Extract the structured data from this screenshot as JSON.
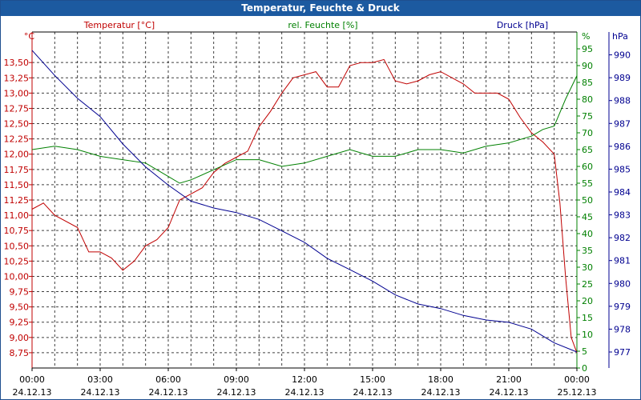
{
  "window": {
    "title": "Temperatur, Feuchte & Druck"
  },
  "chart_data": {
    "type": "line",
    "title": "Temperatur, Feuchte & Druck",
    "grid": true,
    "x_ticks": [
      {
        "time": "00:00",
        "date": "24.12.13"
      },
      {
        "time": "03:00",
        "date": "24.12.13"
      },
      {
        "time": "06:00",
        "date": "24.12.13"
      },
      {
        "time": "09:00",
        "date": "24.12.13"
      },
      {
        "time": "12:00",
        "date": "24.12.13"
      },
      {
        "time": "15:00",
        "date": "24.12.13"
      },
      {
        "time": "18:00",
        "date": "24.12.13"
      },
      {
        "time": "21:00",
        "date": "24.12.13"
      },
      {
        "time": "00:00",
        "date": "25.12.13"
      }
    ],
    "xlim_hours": [
      0,
      24
    ],
    "axes": {
      "temperature": {
        "label": "Temperatur [°C]",
        "unit": "°C",
        "ylim": [
          8.5,
          14.0
        ],
        "ticks": [
          "8,75",
          "9,00",
          "9,25",
          "9,50",
          "9,75",
          "10,00",
          "10,25",
          "10,50",
          "10,75",
          "11,00",
          "11,25",
          "11,50",
          "11,75",
          "12,00",
          "12,25",
          "12,50",
          "12,75",
          "13,00",
          "13,25",
          "13,50"
        ],
        "color": "#c00000"
      },
      "humidity": {
        "label": "rel. Feuchte [%]",
        "unit": "%",
        "ylim": [
          0,
          100
        ],
        "ticks": [
          "0",
          "5",
          "10",
          "15",
          "20",
          "25",
          "30",
          "35",
          "40",
          "45",
          "50",
          "55",
          "60",
          "65",
          "70",
          "75",
          "80",
          "85",
          "90",
          "95"
        ],
        "color": "#008000"
      },
      "pressure": {
        "label": "Druck [hPa]",
        "unit": "hPa",
        "ylim": [
          976.3,
          991.0
        ],
        "ticks": [
          "977",
          "978",
          "979",
          "980",
          "981",
          "982",
          "983",
          "984",
          "985",
          "986",
          "987",
          "988",
          "989",
          "990"
        ],
        "color": "#000090"
      }
    },
    "series": [
      {
        "name": "Temperatur [°C]",
        "axis": "temperature",
        "x": [
          0,
          0.5,
          1,
          2,
          2.5,
          3,
          3.5,
          4,
          4.5,
          5,
          5.5,
          6,
          6.5,
          7,
          7.5,
          8,
          8.5,
          9,
          9.5,
          10,
          10.5,
          11,
          11.5,
          12,
          12.5,
          13,
          13.5,
          14,
          14.5,
          15,
          15.5,
          16,
          16.5,
          17,
          17.5,
          18,
          18.5,
          19,
          19.5,
          20,
          20.5,
          21,
          21.5,
          22,
          22.5,
          23,
          23.25,
          23.5,
          23.75,
          24
        ],
        "y": [
          11.1,
          11.2,
          11.0,
          10.8,
          10.4,
          10.4,
          10.3,
          10.1,
          10.25,
          10.5,
          10.6,
          10.8,
          11.25,
          11.35,
          11.45,
          11.7,
          11.85,
          11.95,
          12.05,
          12.45,
          12.7,
          13.0,
          13.25,
          13.3,
          13.35,
          13.1,
          13.1,
          13.45,
          13.5,
          13.5,
          13.55,
          13.2,
          13.15,
          13.2,
          13.3,
          13.35,
          13.25,
          13.15,
          13.0,
          13.0,
          13.0,
          12.9,
          12.6,
          12.35,
          12.2,
          12.0,
          11.2,
          10.0,
          9.0,
          8.75
        ]
      },
      {
        "name": "rel. Feuchte [%]",
        "axis": "humidity",
        "x": [
          0,
          1,
          2,
          3,
          4,
          5,
          6,
          6.5,
          7,
          8,
          9,
          10,
          11,
          12,
          13,
          14,
          15,
          16,
          17,
          18,
          19,
          20,
          21,
          22,
          22.5,
          23,
          23.5,
          24
        ],
        "y": [
          65,
          66,
          65,
          63,
          62,
          61,
          57,
          55,
          56,
          59,
          62,
          62,
          60,
          61,
          63,
          65,
          63,
          63,
          65,
          65,
          64,
          66,
          67,
          69,
          71,
          72,
          80,
          87
        ]
      },
      {
        "name": "Druck [hPa]",
        "axis": "pressure",
        "x": [
          0,
          1,
          2,
          3,
          4,
          5,
          6,
          7,
          8,
          9,
          10,
          11,
          12,
          13,
          14,
          15,
          16,
          17,
          18,
          19,
          20,
          21,
          22,
          23,
          24
        ],
        "y": [
          990.2,
          989.1,
          988.1,
          987.3,
          986.1,
          985.1,
          984.3,
          983.6,
          983.3,
          983.1,
          982.8,
          982.3,
          981.8,
          981.1,
          980.6,
          980.1,
          979.5,
          979.1,
          978.9,
          978.6,
          978.4,
          978.3,
          978.0,
          977.4,
          977.0
        ]
      }
    ]
  }
}
